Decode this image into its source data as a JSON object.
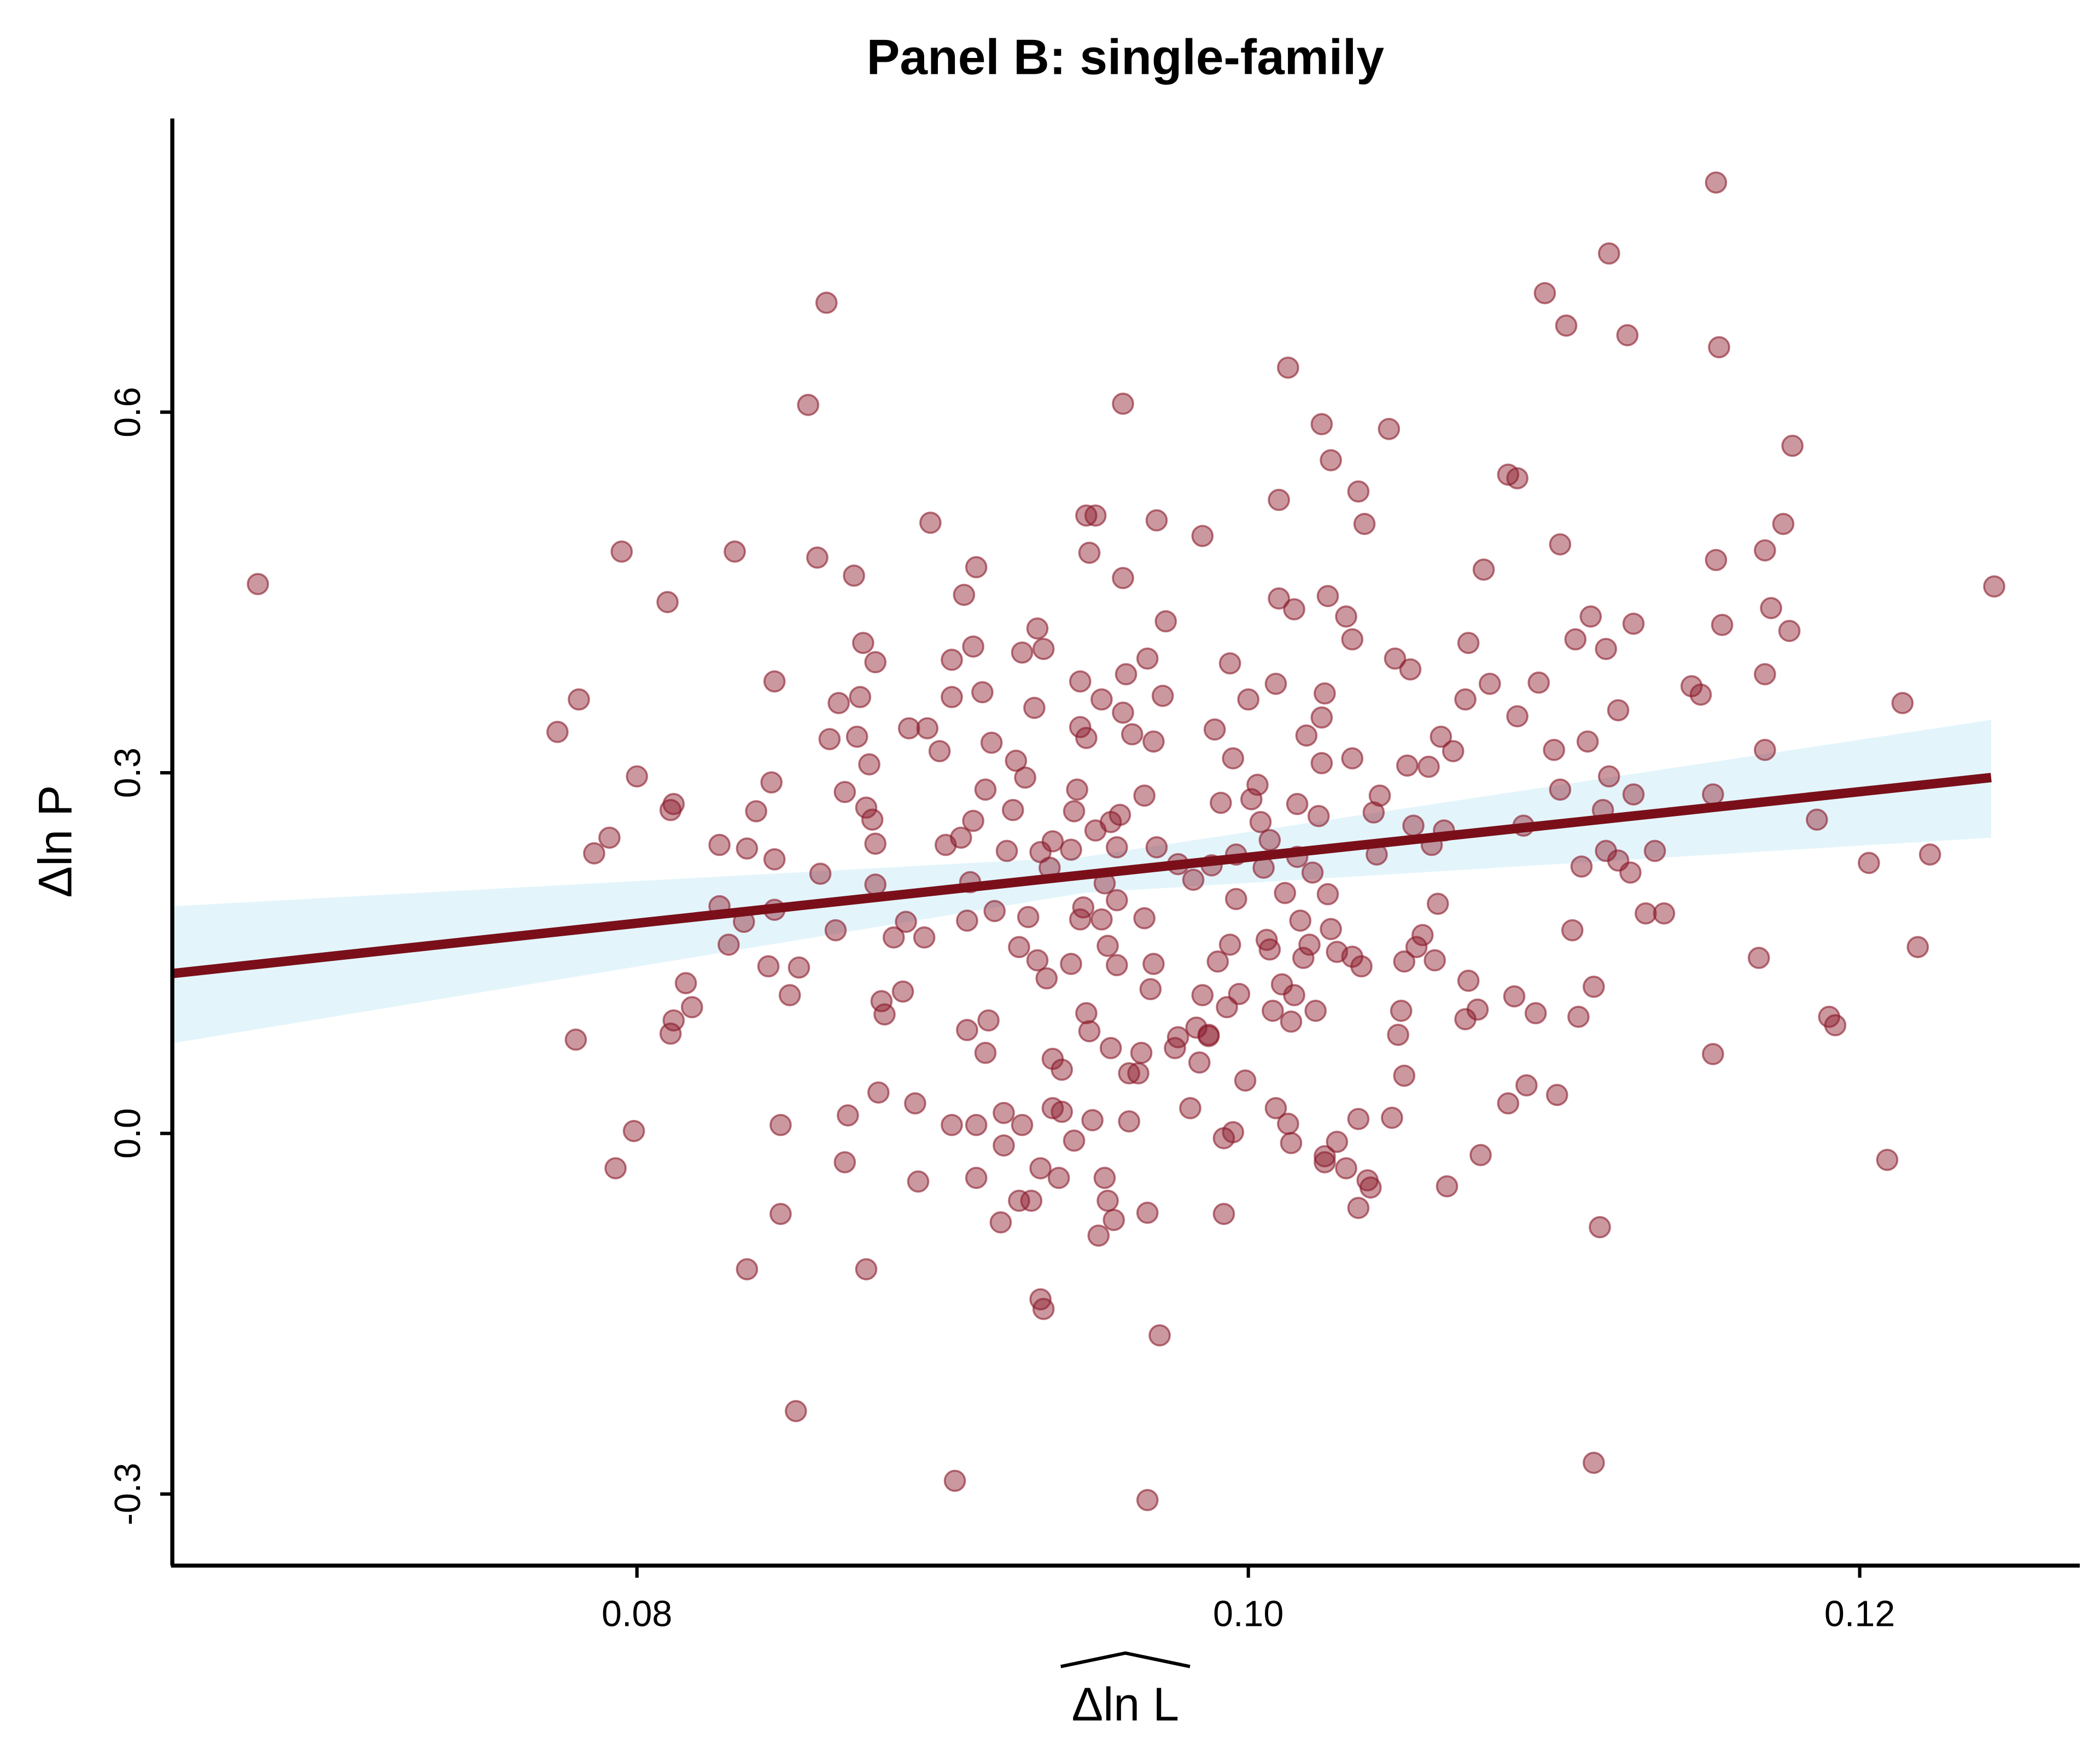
{
  "chart_data": {
    "type": "scatter",
    "title": "Panel B: single-family",
    "x_label": "Δln L",
    "y_label": "Δln P",
    "xlim": [
      0.0648,
      0.1272
    ],
    "ylim": [
      -0.3595,
      0.8443
    ],
    "xticks": [
      0.08,
      {
        "value": 0.1,
        "label": "0.10"
      },
      0.12
    ],
    "yticks": [
      -0.3,
      {
        "value": 0,
        "label": "0.0"
      },
      0.3,
      0.6
    ],
    "color": "#8b1a2b",
    "x": [
      0.0676,
      0.0774,
      0.0781,
      0.0786,
      0.0791,
      0.078,
      0.0795,
      0.08,
      0.0799,
      0.0793,
      0.081,
      0.0812,
      0.0811,
      0.0816,
      0.0818,
      0.0811,
      0.0812,
      0.0827,
      0.0827,
      0.0832,
      0.083,
      0.0835,
      0.0836,
      0.0839,
      0.0836,
      0.0843,
      0.0844,
      0.0845,
      0.0845,
      0.0845,
      0.0847,
      0.0847,
      0.085,
      0.0852,
      0.0853,
      0.0856,
      0.0859,
      0.086,
      0.0862,
      0.0863,
      0.0865,
      0.0866,
      0.0868,
      0.0868,
      0.0869,
      0.0871,
      0.0872,
      0.0873,
      0.0874,
      0.0875,
      0.0875,
      0.0876,
      0.0877,
      0.0878,
      0.0878,
      0.0878,
      0.0879,
      0.088,
      0.0881,
      0.0884,
      0.0887,
      0.0888,
      0.0889,
      0.0891,
      0.0892,
      0.0894,
      0.0895,
      0.0896,
      0.0899,
      0.0901,
      0.0903,
      0.0903,
      0.0903,
      0.0904,
      0.0906,
      0.0907,
      0.0908,
      0.0908,
      0.0909,
      0.091,
      0.091,
      0.0911,
      0.0911,
      0.0911,
      0.0913,
      0.0914,
      0.0914,
      0.0915,
      0.0916,
      0.0917,
      0.0919,
      0.092,
      0.092,
      0.0921,
      0.0923,
      0.0924,
      0.0925,
      0.0925,
      0.0926,
      0.0926,
      0.0927,
      0.0928,
      0.0929,
      0.093,
      0.0931,
      0.0931,
      0.0932,
      0.0932,
      0.0932,
      0.0933,
      0.0933,
      0.0934,
      0.0935,
      0.0936,
      0.0936,
      0.0936,
      0.0938,
      0.0939,
      0.0939,
      0.0942,
      0.0942,
      0.0943,
      0.0943,
      0.0944,
      0.0945,
      0.0945,
      0.0945,
      0.0946,
      0.0947,
      0.0947,
      0.0947,
      0.0948,
      0.0948,
      0.0949,
      0.095,
      0.095,
      0.0951,
      0.0952,
      0.0952,
      0.0953,
      0.0953,
      0.0954,
      0.0954,
      0.0955,
      0.0955,
      0.0956,
      0.0957,
      0.0957,
      0.0957,
      0.0958,
      0.0959,
      0.0959,
      0.0959,
      0.096,
      0.0961,
      0.0961,
      0.0962,
      0.0964,
      0.0965,
      0.0966,
      0.0966,
      0.0967,
      0.0967,
      0.0967,
      0.0968,
      0.0969,
      0.0969,
      0.097,
      0.097,
      0.0971,
      0.0972,
      0.0973,
      0.0976,
      0.0977,
      0.0977,
      0.0981,
      0.0982,
      0.0983,
      0.0984,
      0.0985,
      0.0985,
      0.0987,
      0.0987,
      0.0988,
      0.0989,
      0.099,
      0.0991,
      0.0992,
      0.0992,
      0.0993,
      0.0994,
      0.0994,
      0.0995,
      0.0995,
      0.0996,
      0.0996,
      0.0997,
      0.0999,
      0.1,
      0.1001,
      0.1003,
      0.1004,
      0.1005,
      0.1006,
      0.1007,
      0.1007,
      0.1008,
      0.1009,
      0.1009,
      0.101,
      0.101,
      0.1011,
      0.1012,
      0.1013,
      0.1013,
      0.1014,
      0.1014,
      0.1015,
      0.1015,
      0.1016,
      0.1016,
      0.1017,
      0.1018,
      0.1019,
      0.102,
      0.1021,
      0.1022,
      0.1023,
      0.1024,
      0.1024,
      0.1024,
      0.1025,
      0.1025,
      0.1025,
      0.1026,
      0.1026,
      0.1027,
      0.1027,
      0.1029,
      0.1029,
      0.1032,
      0.1032,
      0.1034,
      0.1034,
      0.1034,
      0.1036,
      0.1036,
      0.1036,
      0.1037,
      0.1038,
      0.1039,
      0.104,
      0.1041,
      0.1042,
      0.1043,
      0.1046,
      0.1047,
      0.1048,
      0.1049,
      0.105,
      0.1051,
      0.1051,
      0.1052,
      0.1053,
      0.1054,
      0.1055,
      0.1057,
      0.1059,
      0.106,
      0.1061,
      0.1062,
      0.1063,
      0.1064,
      0.1065,
      0.1067,
      0.1071,
      0.1071,
      0.1072,
      0.1072,
      0.1075,
      0.1076,
      0.1077,
      0.1079,
      0.1085,
      0.1085,
      0.1087,
      0.1088,
      0.1088,
      0.109,
      0.1091,
      0.1094,
      0.1095,
      0.1097,
      0.11,
      0.1101,
      0.1102,
      0.1102,
      0.1104,
      0.1106,
      0.1107,
      0.1108,
      0.1109,
      0.1111,
      0.1112,
      0.1113,
      0.1113,
      0.1115,
      0.1116,
      0.1117,
      0.1117,
      0.1118,
      0.1118,
      0.1121,
      0.1121,
      0.1124,
      0.1125,
      0.1126,
      0.1126,
      0.113,
      0.1133,
      0.1136,
      0.1145,
      0.1148,
      0.1152,
      0.1152,
      0.1153,
      0.1153,
      0.1154,
      0.1155,
      0.1167,
      0.1169,
      0.1169,
      0.1169,
      0.1171,
      0.1175,
      0.1177,
      0.1178,
      0.1186,
      0.119,
      0.1192,
      0.1203,
      0.1209,
      0.1214,
      0.1223,
      0.1219,
      0.1244
    ],
    "y": [
      0.457,
      0.334,
      0.361,
      0.233,
      0.246,
      0.078,
      0.484,
      0.297,
      0.002,
      -0.029,
      0.442,
      0.274,
      0.269,
      0.125,
      0.105,
      0.083,
      0.094,
      0.24,
      0.189,
      0.484,
      0.157,
      0.176,
      -0.113,
      0.268,
      0.237,
      0.139,
      0.292,
      0.376,
      0.228,
      0.186,
      0.007,
      -0.067,
      0.115,
      -0.231,
      0.138,
      0.606,
      0.479,
      0.216,
      0.691,
      0.328,
      0.169,
      0.358,
      0.284,
      -0.024,
      0.015,
      0.464,
      0.33,
      0.363,
      0.408,
      0.271,
      -0.113,
      0.307,
      0.261,
      0.241,
      0.392,
      0.207,
      0.034,
      0.11,
      0.099,
      0.163,
      0.118,
      0.176,
      0.337,
      0.025,
      -0.04,
      0.163,
      0.337,
      0.508,
      0.318,
      0.24,
      0.394,
      0.363,
      0.007,
      -0.289,
      0.246,
      0.448,
      0.086,
      0.177,
      0.209,
      0.26,
      0.405,
      -0.037,
      0.007,
      0.471,
      0.367,
      0.067,
      0.286,
      0.094,
      0.325,
      0.185,
      -0.074,
      0.017,
      -0.01,
      0.235,
      0.269,
      0.31,
      0.155,
      -0.056,
      0.4,
      0.007,
      0.296,
      0.18,
      -0.056,
      0.354,
      0.42,
      0.144,
      0.234,
      -0.138,
      -0.029,
      -0.146,
      0.403,
      0.129,
      0.221,
      0.062,
      0.021,
      0.243,
      -0.037,
      0.018,
      0.053,
      0.236,
      0.141,
      -0.006,
      0.268,
      0.286,
      0.338,
      0.178,
      0.376,
      0.188,
      0.1,
      0.329,
      0.514,
      0.085,
      0.483,
      0.011,
      0.252,
      0.514,
      -0.085,
      0.361,
      0.178,
      0.208,
      -0.037,
      -0.056,
      0.156,
      0.259,
      0.071,
      -0.072,
      0.194,
      0.14,
      0.238,
      0.265,
      0.607,
      0.462,
      0.35,
      0.382,
      0.05,
      0.01,
      0.332,
      0.05,
      0.067,
      0.179,
      0.281,
      -0.305,
      0.395,
      -0.066,
      0.12,
      0.326,
      0.141,
      0.51,
      0.238,
      -0.168,
      0.364,
      0.426,
      0.071,
      0.224,
      0.08,
      0.021,
      0.211,
      0.088,
      0.059,
      0.497,
      0.115,
      0.082,
      0.081,
      0.223,
      0.336,
      0.143,
      0.275,
      -0.067,
      -0.004,
      0.105,
      0.391,
      0.157,
      0.312,
      0.001,
      0.232,
      0.195,
      0.116,
      0.044,
      0.361,
      0.278,
      0.29,
      0.259,
      0.221,
      0.161,
      0.244,
      0.153,
      0.102,
      0.021,
      0.374,
      0.445,
      0.527,
      0.124,
      0.2,
      0.637,
      0.008,
      0.093,
      -0.008,
      0.115,
      0.436,
      0.274,
      0.23,
      0.177,
      0.146,
      0.331,
      0.157,
      0.217,
      0.102,
      0.264,
      0.59,
      0.346,
      0.308,
      -0.019,
      0.366,
      -0.024,
      0.447,
      0.199,
      0.17,
      0.56,
      0.151,
      -0.007,
      -0.029,
      0.43,
      0.411,
      0.147,
      0.312,
      0.534,
      0.012,
      -0.062,
      0.139,
      0.507,
      -0.039,
      -0.045,
      0.267,
      0.232,
      0.281,
      0.586,
      0.013,
      0.395,
      0.082,
      0.102,
      0.143,
      0.048,
      0.306,
      0.386,
      0.256,
      0.155,
      0.165,
      0.305,
      0.24,
      0.144,
      0.191,
      0.33,
      0.252,
      -0.044,
      0.318,
      0.095,
      0.361,
      0.408,
      0.127,
      0.103,
      -0.018,
      0.469,
      0.374,
      0.548,
      0.025,
      0.114,
      0.545,
      0.347,
      0.256,
      0.04,
      0.1,
      0.375,
      0.699,
      0.319,
      0.032,
      0.49,
      0.286,
      0.672,
      0.169,
      0.411,
      0.097,
      0.222,
      0.326,
      0.43,
      0.122,
      -0.274,
      -0.078,
      0.269,
      0.403,
      0.235,
      0.732,
      0.297,
      0.227,
      0.352,
      0.664,
      0.217,
      0.424,
      0.282,
      0.183,
      0.235,
      0.183,
      0.372,
      0.365,
      0.066,
      0.282,
      0.791,
      0.477,
      0.654,
      0.423,
      0.146,
      0.485,
      0.382,
      0.319,
      0.437,
      0.507,
      0.418,
      0.572,
      0.261,
      0.097,
      0.09,
      0.225,
      -0.022,
      0.358,
      0.232,
      0.155,
      0.455
    ],
    "fit": {
      "x": [
        0.0648,
        0.0946,
        0.1243
      ],
      "y": [
        0.133,
        0.215,
        0.296
      ],
      "lower": [
        0.075,
        0.2,
        0.246
      ],
      "upper": [
        0.189,
        0.23,
        0.344
      ],
      "color": "#7a0f1a",
      "band_color": "#e3f5fb"
    }
  }
}
